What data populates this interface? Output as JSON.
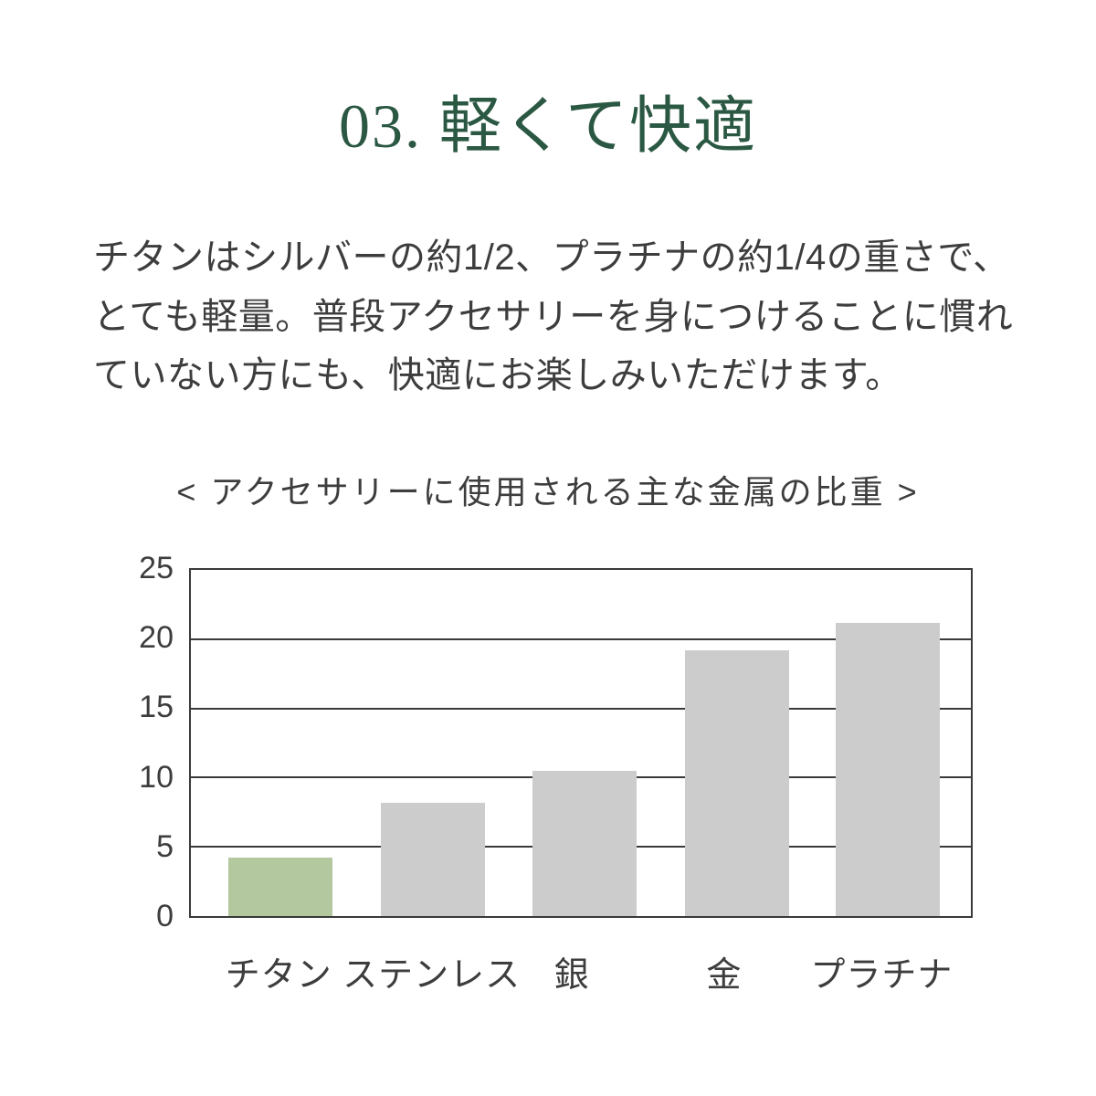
{
  "page": {
    "background": "#ffffff",
    "text_color": "#3d3d3d"
  },
  "header": {
    "title": "03. 軽くて快適",
    "color": "#2b5843"
  },
  "body_text": {
    "paragraph": "チタンはシルバーの約1/2、プラチナの約1/4の重さで、\nとても軽量。普段アクセサリーを身につけることに慣れ\nていない方にも、快適にお楽しみいただけます。"
  },
  "chart_data": {
    "type": "bar",
    "title": "< アクセサリーに使用される主な金属の比重 >",
    "categories": [
      "チタン",
      "ステンレス",
      "銀",
      "金",
      "プラチナ"
    ],
    "values": [
      4.2,
      8.2,
      10.5,
      19.2,
      21.2
    ],
    "xlabel": "",
    "ylabel": "",
    "ylim": [
      0,
      25
    ],
    "yticks": [
      0,
      5,
      10,
      15,
      20,
      25
    ],
    "grid": true,
    "legend": "none",
    "highlight_index": 0,
    "colors": {
      "highlight_bar": "#b4c8a0",
      "default_bar": "#cccccc",
      "axis": "#3a3a3a",
      "text": "#3d3d3d"
    }
  }
}
